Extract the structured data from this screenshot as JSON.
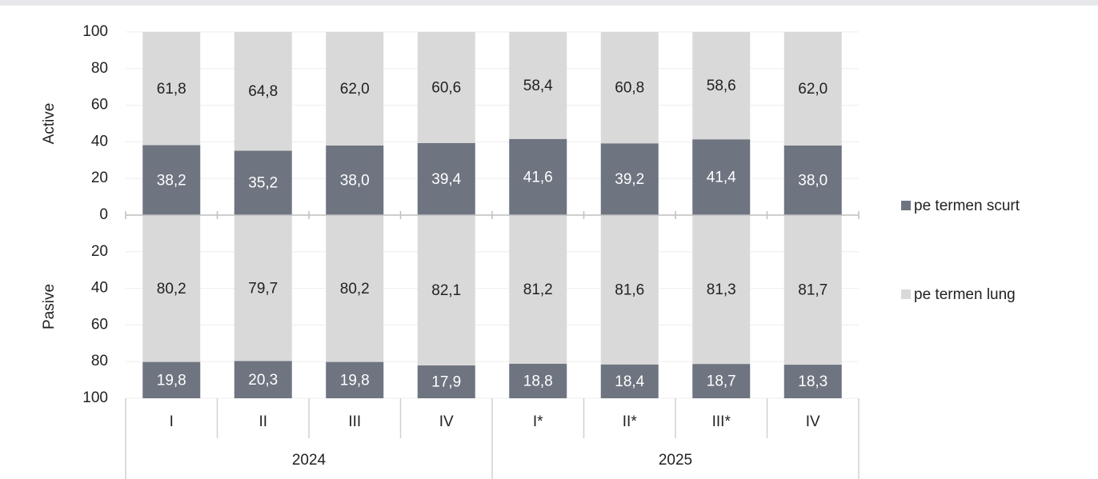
{
  "chart_data": {
    "type": "bar",
    "stacked": true,
    "grid": true,
    "legend": "right",
    "categories": [
      "I",
      "II",
      "III",
      "IV",
      "I*",
      "II*",
      "III*",
      "IV"
    ],
    "category_groups": [
      "2024",
      "2025"
    ],
    "series": [
      {
        "name": "pe termen scurt",
        "color": "#6e7480"
      },
      {
        "name": "pe termen lung",
        "color": "#d9d9d9"
      }
    ],
    "panels": [
      {
        "label": "Active",
        "ylim": [
          0,
          100
        ],
        "yticks": [
          0,
          20,
          40,
          60,
          80,
          100
        ],
        "reversed": false,
        "series": [
          {
            "values": [
              38.2,
              35.2,
              38.0,
              39.4,
              41.6,
              39.2,
              41.4,
              38.0
            ],
            "value_labels": [
              "38,2",
              "35,2",
              "38,0",
              "39,4",
              "41,6",
              "39,2",
              "41,4",
              "38,0"
            ]
          },
          {
            "values": [
              61.8,
              64.8,
              62.0,
              60.6,
              58.4,
              60.8,
              58.6,
              62.0
            ],
            "value_labels": [
              "61,8",
              "64,8",
              "62,0",
              "60,6",
              "58,4",
              "60,8",
              "58,6",
              "62,0"
            ]
          }
        ]
      },
      {
        "label": "Pasive",
        "ylim": [
          0,
          100
        ],
        "yticks": [
          20,
          40,
          60,
          80,
          100
        ],
        "reversed": true,
        "series": [
          {
            "values": [
              19.8,
              20.3,
              19.8,
              17.9,
              18.8,
              18.4,
              18.7,
              18.3
            ],
            "value_labels": [
              "19,8",
              "20,3",
              "19,8",
              "17,9",
              "18,8",
              "18,4",
              "18,7",
              "18,3"
            ]
          },
          {
            "values": [
              80.2,
              79.7,
              80.2,
              82.1,
              81.2,
              81.6,
              81.3,
              81.7
            ],
            "value_labels": [
              "80,2",
              "79,7",
              "80,2",
              "82,1",
              "81,2",
              "81,6",
              "81,3",
              "81,7"
            ]
          }
        ]
      }
    ]
  }
}
